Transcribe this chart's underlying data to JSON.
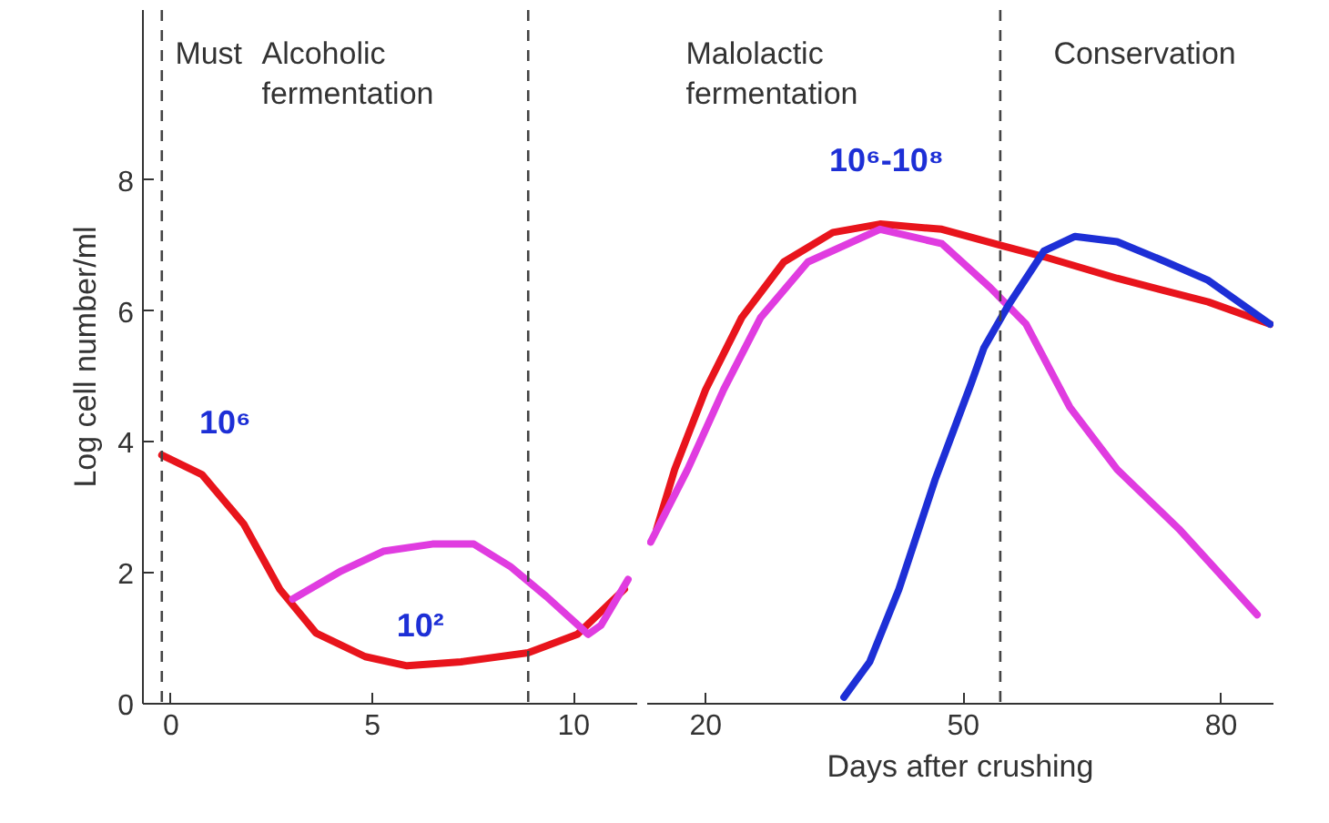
{
  "chart_data": [
    {
      "type": "line",
      "ylabel": "Log cell number/ml",
      "xlim": [
        -0.7,
        11.6
      ],
      "ylim": [
        0,
        10.6
      ],
      "xticks": [
        0,
        5,
        10
      ],
      "yticks": [
        0,
        2,
        4,
        6,
        8
      ],
      "grid": false,
      "line_style": "solid",
      "marker": "none",
      "series": [
        {
          "color": "#e8141c",
          "x": [
            -0.23,
            0.77,
            1.8,
            2.7,
            3.6,
            4.82,
            5.86,
            7.2,
            8.87,
            10.09,
            11.26
          ],
          "values": [
            3.8,
            3.5,
            2.75,
            1.75,
            1.08,
            0.72,
            0.58,
            0.64,
            0.78,
            1.06,
            1.75
          ]
        },
        {
          "color": "#e03ce0",
          "x": [
            3.02,
            4.23,
            5.27,
            6.49,
            7.52,
            8.42,
            9.32,
            10.36,
            10.68,
            11.35
          ],
          "values": [
            1.6,
            2.03,
            2.33,
            2.44,
            2.44,
            2.1,
            1.64,
            1.06,
            1.2,
            1.9
          ]
        }
      ],
      "ref_lines": [
        {
          "axis": "x",
          "value": -0.23,
          "color": "#444444",
          "line_style": "dashed"
        },
        {
          "axis": "x",
          "value": 8.87,
          "color": "#444444",
          "line_style": "dashed"
        }
      ],
      "annotations": [
        "Must",
        "Alcoholic\nfermentation",
        "10⁶",
        "10²"
      ]
    },
    {
      "type": "line",
      "xlabel": "Days after crushing",
      "tick_labels": "x",
      "xlim": [
        13.2,
        86.1
      ],
      "ylim": [
        0,
        10.6
      ],
      "xticks": [
        20,
        50,
        80
      ],
      "grid": false,
      "line_style": "solid",
      "marker": "none",
      "series": [
        {
          "color": "#e8141c",
          "x": [
            14.3,
            16.4,
            20,
            24.2,
            29.1,
            34.8,
            40.3,
            47.5,
            54.5,
            59.4,
            67.9,
            78.5,
            85.7
          ],
          "values": [
            2.67,
            3.58,
            4.8,
            5.9,
            6.75,
            7.2,
            7.33,
            7.25,
            7.0,
            6.83,
            6.5,
            6.14,
            5.8
          ]
        },
        {
          "color": "#e03ce0",
          "x": [
            13.6,
            17.9,
            22.1,
            26.4,
            31.9,
            40.3,
            47.5,
            53.1,
            57.3,
            62.4,
            67.9,
            75.1,
            84.2
          ],
          "values": [
            2.47,
            3.58,
            4.8,
            5.9,
            6.75,
            7.25,
            7.03,
            6.36,
            5.8,
            4.53,
            3.58,
            2.67,
            1.36
          ]
        },
        {
          "color": "#1d2fd6",
          "x": [
            36.1,
            39.1,
            42.5,
            46.7,
            50.9,
            52.4,
            55.2,
            59.4,
            63.0,
            67.9,
            73.6,
            78.5,
            85.7
          ],
          "values": [
            0.1,
            0.64,
            1.75,
            3.42,
            4.89,
            5.44,
            6.08,
            6.92,
            7.14,
            7.06,
            6.75,
            6.47,
            5.8
          ]
        }
      ],
      "ref_lines": [
        {
          "axis": "x",
          "value": 54.3,
          "color": "#444444",
          "line_style": "dashed"
        }
      ],
      "annotations": [
        "Malolactic\nfermentation",
        "Conservation",
        "10⁶-10⁸"
      ]
    }
  ]
}
